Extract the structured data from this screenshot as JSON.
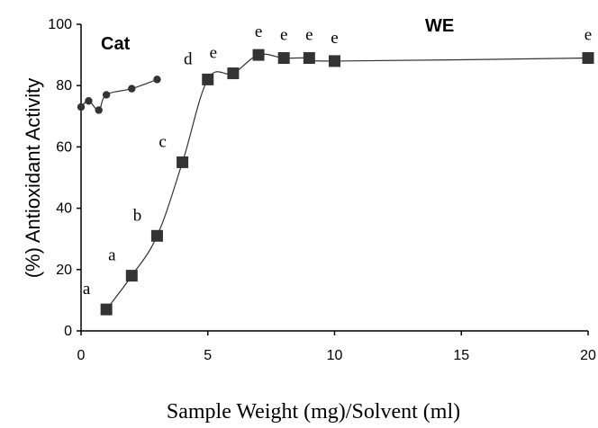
{
  "chart_data": {
    "type": "line",
    "xlabel": "Sample Weight (mg)/Solvent (ml)",
    "ylabel": "(%) Antioxidant Activity",
    "xlim": [
      0,
      20
    ],
    "ylim": [
      0,
      100
    ],
    "xticks": [
      "0",
      "5",
      "10",
      "15",
      "20"
    ],
    "yticks": [
      "0",
      "20",
      "40",
      "60",
      "80",
      "100"
    ],
    "grid": false,
    "series": [
      {
        "name": "Cat",
        "marker": "circle",
        "color": "#333333",
        "x": [
          0,
          0.3,
          0.7,
          1,
          2,
          3
        ],
        "y": [
          73,
          75,
          72,
          77,
          79,
          82
        ],
        "labels": []
      },
      {
        "name": "WE",
        "marker": "square",
        "color": "#333333",
        "x": [
          1,
          2,
          3,
          4,
          5,
          6,
          7,
          8,
          9,
          10,
          20
        ],
        "y": [
          7,
          18,
          31,
          55,
          82,
          84,
          90,
          89,
          89,
          88,
          89
        ],
        "labels": [
          "a",
          "a",
          "b",
          "c",
          "d",
          "e",
          "e",
          "e",
          "e",
          "e",
          "e"
        ]
      }
    ]
  }
}
